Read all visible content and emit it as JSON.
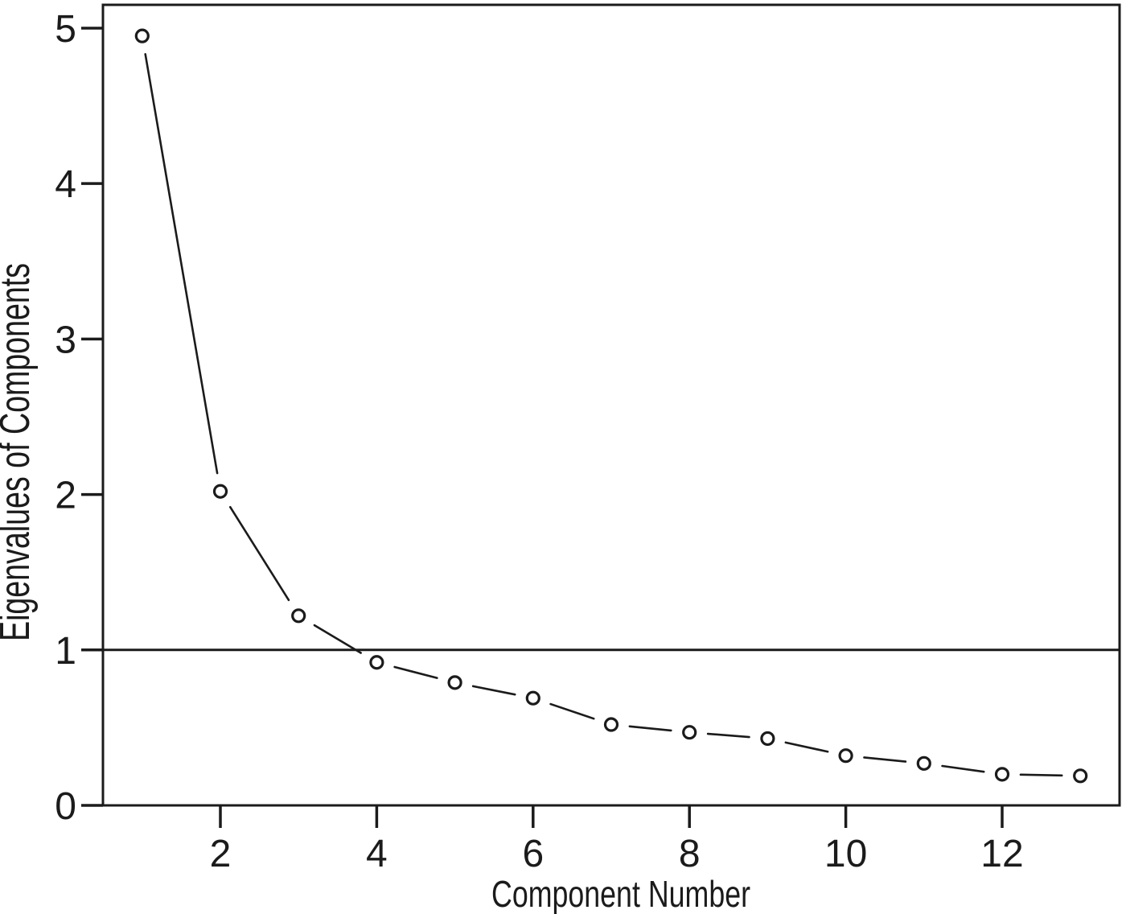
{
  "page": {
    "background": "#ffffff",
    "ink_color": "#1b1b1b"
  },
  "chart_data": {
    "type": "line",
    "subtype": "scree-plot",
    "title": "",
    "xlabel": "Component Number",
    "ylabel": "Eigenvalues of Components",
    "x": [
      1,
      2,
      3,
      4,
      5,
      6,
      7,
      8,
      9,
      10,
      11,
      12,
      13
    ],
    "series": [
      {
        "name": "Eigenvalues",
        "values": [
          4.95,
          2.02,
          1.22,
          0.92,
          0.79,
          0.69,
          0.52,
          0.47,
          0.43,
          0.32,
          0.27,
          0.2,
          0.19
        ]
      }
    ],
    "reference_line_y": 1,
    "x_ticks": [
      2,
      4,
      6,
      8,
      10,
      12
    ],
    "y_ticks": [
      0,
      1,
      2,
      3,
      4,
      5
    ],
    "xlim": [
      0.5,
      13.5
    ],
    "ylim": [
      0,
      5.15
    ],
    "grid": false,
    "legend_position": "none",
    "marker": "open-circle",
    "line_color": "#1b1b1b",
    "marker_fill": "#ffffff",
    "background_color": "#ffffff"
  }
}
